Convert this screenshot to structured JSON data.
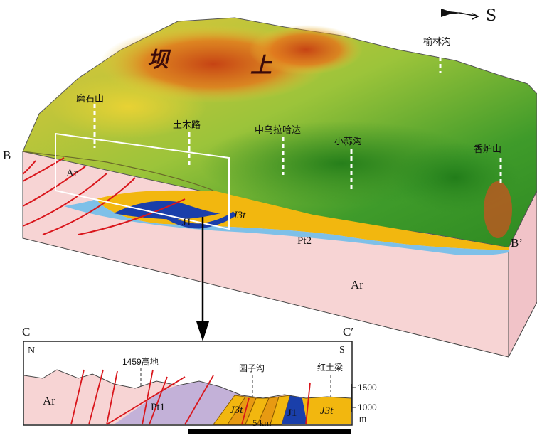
{
  "compass": {
    "label": "S"
  },
  "block": {
    "section_start": "B",
    "section_end": "B’",
    "highland_char_1": "坝",
    "highland_char_2": "上",
    "places": [
      "磨石山",
      "土木路",
      "中乌拉哈达",
      "小蒜沟",
      "香炉山",
      "榆林沟"
    ],
    "units": {
      "ar_top": "Ar",
      "ar_bottom": "Ar",
      "j1": "J1",
      "j3t": "J3t",
      "pt2": "Pt2"
    }
  },
  "inset": {
    "start": "C",
    "end": "C′",
    "left_dir": "N",
    "right_dir": "S",
    "places": [
      "1459高地",
      "园子沟",
      "红土梁"
    ],
    "units": {
      "ar": "Ar",
      "pt1": "Pt1",
      "j3t_a": "J3t",
      "j1": "J1",
      "j3t_b": "J3t"
    },
    "elev_labels": [
      "1500",
      "1000"
    ],
    "elev_unit": "m",
    "scale_label": "5 km"
  },
  "colors": {
    "archean": "#f7d4d4",
    "pt1": "#c3b1d8",
    "pt2": "#7ec0e8",
    "j1": "#1a3faa",
    "j3t": "#f2b70f",
    "fault": "#d9161c",
    "green_terrain": "#3f9b2a",
    "red_terrain": "#d95f1a",
    "yellow_terrain": "#e8d234"
  }
}
